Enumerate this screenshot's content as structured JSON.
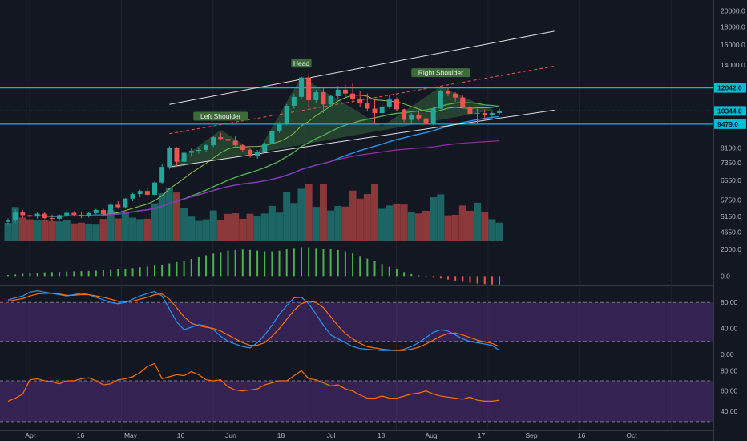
{
  "colors": {
    "background": "#131722",
    "up": "#26a69a",
    "down": "#ef5350",
    "level_line": "#00bcd4",
    "pattern_fill": "#4caf50",
    "band_fill": "#8a3fd1",
    "stoch_k": "#2196f3",
    "stoch_d": "#ff6d00",
    "rsi": "#ff6d00",
    "ma_green": "#4caf50",
    "ma_blue": "#2196f3",
    "ma_purple": "#9c27b0",
    "trend": "#e0e0e0",
    "parallel": "#ef5350"
  },
  "chart_data": [
    {
      "type": "candlestick",
      "y_scale": "log",
      "ylim": [
        4400,
        21500
      ],
      "x_ticks": [
        "Apr",
        "16",
        "May",
        "16",
        "Jun",
        "18",
        "Jul",
        "18",
        "Aug",
        "17",
        "Sep",
        "16",
        "Oct"
      ],
      "y_ticks": [
        "20000.0",
        "18000.0",
        "16000.0",
        "14000.0",
        "12042.0",
        "10344.0",
        "9479.0",
        "8100.0",
        "7350.0",
        "6550.0",
        "5750.0",
        "5150.0",
        "4650.0"
      ],
      "horizontal_levels": [
        12042.0,
        9479.0
      ],
      "last_price": 10344.0,
      "annotations": [
        "Left Shoulder",
        "Head",
        "Right Shoulder"
      ],
      "candles": [
        [
          4980,
          5090,
          4900,
          5020
        ],
        [
          5020,
          5400,
          4950,
          5290
        ],
        [
          5290,
          5380,
          5100,
          5200
        ],
        [
          5200,
          5300,
          5050,
          5150
        ],
        [
          5150,
          5320,
          5080,
          5250
        ],
        [
          5250,
          5300,
          5060,
          5100
        ],
        [
          5100,
          5220,
          5000,
          5080
        ],
        [
          5080,
          5230,
          5010,
          5200
        ],
        [
          5200,
          5360,
          5120,
          5280
        ],
        [
          5280,
          5340,
          5150,
          5210
        ],
        [
          5210,
          5300,
          5100,
          5160
        ],
        [
          5160,
          5310,
          5120,
          5270
        ],
        [
          5270,
          5420,
          5230,
          5380
        ],
        [
          5380,
          5440,
          5180,
          5240
        ],
        [
          5240,
          5620,
          5200,
          5570
        ],
        [
          5570,
          5700,
          5420,
          5480
        ],
        [
          5480,
          5820,
          5430,
          5800
        ],
        [
          5800,
          6020,
          5700,
          5980
        ],
        [
          5980,
          6150,
          5850,
          6100
        ],
        [
          6100,
          6200,
          5900,
          5950
        ],
        [
          5950,
          6500,
          5880,
          6450
        ],
        [
          6450,
          7300,
          6400,
          7150
        ],
        [
          7150,
          8200,
          7050,
          8100
        ],
        [
          8100,
          8150,
          7200,
          7400
        ],
        [
          7400,
          7900,
          7250,
          7850
        ],
        [
          7850,
          8100,
          7650,
          7950
        ],
        [
          7950,
          8150,
          7800,
          8000
        ],
        [
          8000,
          8300,
          7900,
          8250
        ],
        [
          8250,
          8800,
          8150,
          8700
        ],
        [
          8700,
          8950,
          8550,
          8600
        ],
        [
          8600,
          8850,
          8300,
          8500
        ],
        [
          8500,
          8750,
          8200,
          8250
        ],
        [
          8250,
          8300,
          7900,
          8000
        ],
        [
          8000,
          8100,
          7600,
          7700
        ],
        [
          7700,
          8000,
          7550,
          7900
        ],
        [
          7900,
          8400,
          7850,
          8350
        ],
        [
          8350,
          9100,
          8300,
          9050
        ],
        [
          9050,
          9600,
          8950,
          9500
        ],
        [
          9500,
          10800,
          9400,
          10700
        ],
        [
          10700,
          11600,
          10500,
          11350
        ],
        [
          11350,
          13000,
          11200,
          12900
        ],
        [
          12900,
          13200,
          10600,
          11100
        ],
        [
          11100,
          11900,
          10900,
          11700
        ],
        [
          11700,
          12100,
          10200,
          10800
        ],
        [
          10800,
          11500,
          10650,
          11400
        ],
        [
          11400,
          12200,
          11150,
          11900
        ],
        [
          11900,
          12300,
          11300,
          11600
        ],
        [
          11600,
          12400,
          10900,
          11200
        ],
        [
          11200,
          11800,
          10600,
          10900
        ],
        [
          10900,
          11600,
          10300,
          10500
        ],
        [
          10500,
          11100,
          9500,
          10200
        ],
        [
          10200,
          10900,
          10050,
          10650
        ],
        [
          10650,
          11500,
          10500,
          11150
        ],
        [
          11150,
          11300,
          10300,
          10450
        ],
        [
          10450,
          10500,
          9600,
          9750
        ],
        [
          9750,
          10200,
          9500,
          10100
        ],
        [
          10100,
          10350,
          9700,
          9850
        ],
        [
          9850,
          10000,
          9300,
          9450
        ],
        [
          9450,
          10600,
          9400,
          10500
        ],
        [
          10500,
          11900,
          10450,
          11800
        ],
        [
          11800,
          12100,
          11400,
          11600
        ],
        [
          11600,
          11700,
          11000,
          11300
        ],
        [
          11300,
          11450,
          10500,
          10600
        ],
        [
          10600,
          10800,
          10050,
          10150
        ],
        [
          10150,
          10500,
          9500,
          10200
        ],
        [
          10200,
          10450,
          9750,
          10050
        ],
        [
          10050,
          10300,
          9800,
          10200
        ],
        [
          10200,
          10500,
          10100,
          10344
        ]
      ]
    },
    {
      "type": "bar",
      "panel": "momentum histogram",
      "ylim": [
        -700,
        2600
      ],
      "y_ticks": [
        "2000.0",
        "0.0"
      ],
      "values": [
        80,
        120,
        170,
        210,
        240,
        280,
        300,
        310,
        340,
        360,
        370,
        390,
        410,
        440,
        470,
        500,
        540,
        600,
        670,
        720,
        790,
        860,
        950,
        1050,
        1150,
        1280,
        1420,
        1550,
        1680,
        1800,
        1900,
        1950,
        1980,
        1950,
        1900,
        1850,
        1850,
        1900,
        2000,
        2100,
        2150,
        2150,
        2100,
        2050,
        2000,
        1950,
        1850,
        1700,
        1500,
        1300,
        1100,
        900,
        700,
        500,
        300,
        150,
        50,
        -50,
        -120,
        -180,
        -260,
        -340,
        -420,
        -500,
        -560,
        -600,
        -620,
        -620
      ]
    },
    {
      "type": "line",
      "panel": "stochastic",
      "ylim": [
        -5,
        105
      ],
      "y_ticks": [
        "80.00",
        "40.00",
        "0.00"
      ],
      "band": [
        20,
        80
      ],
      "series": [
        {
          "values": [
            84,
            87,
            90,
            96,
            98,
            96,
            94,
            92,
            90,
            92,
            94,
            92,
            88,
            84,
            80,
            78,
            80,
            85,
            90,
            94,
            97,
            90,
            70,
            50,
            38,
            42,
            46,
            44,
            38,
            28,
            20,
            16,
            12,
            10,
            18,
            30,
            45,
            62,
            75,
            87,
            88,
            78,
            62,
            45,
            30,
            24,
            18,
            12,
            9,
            8,
            7,
            6,
            6,
            6,
            8,
            12,
            18,
            26,
            34,
            38,
            36,
            30,
            24,
            20,
            18,
            16,
            14,
            6
          ]
        },
        {
          "values": [
            82,
            84,
            86,
            90,
            93,
            94,
            94,
            93,
            91,
            91,
            92,
            92,
            90,
            88,
            85,
            82,
            81,
            82,
            85,
            88,
            92,
            93,
            85,
            72,
            58,
            48,
            44,
            42,
            40,
            36,
            30,
            24,
            18,
            14,
            14,
            18,
            28,
            40,
            54,
            68,
            78,
            82,
            80,
            72,
            58,
            44,
            32,
            24,
            17,
            12,
            10,
            8,
            7,
            6,
            6,
            8,
            11,
            16,
            22,
            28,
            32,
            33,
            30,
            26,
            22,
            19,
            17,
            12
          ]
        }
      ]
    },
    {
      "type": "line",
      "panel": "rsi",
      "ylim": [
        22,
        92
      ],
      "y_ticks": [
        "80.00",
        "60.00",
        "40.00"
      ],
      "band": [
        30,
        70
      ],
      "series": [
        {
          "values": [
            50,
            53,
            57,
            71,
            72,
            70,
            69,
            67,
            70,
            70,
            72,
            73,
            70,
            66,
            67,
            71,
            72,
            74,
            78,
            84,
            87,
            72,
            74,
            76,
            75,
            79,
            76,
            71,
            70,
            71,
            64,
            61,
            60,
            61,
            62,
            66,
            68,
            70,
            70,
            75,
            80,
            72,
            71,
            68,
            65,
            66,
            62,
            60,
            56,
            53,
            53,
            55,
            53,
            53,
            55,
            57,
            58,
            60,
            57,
            55,
            54,
            53,
            52,
            54,
            51,
            50,
            50,
            51
          ]
        }
      ]
    }
  ]
}
